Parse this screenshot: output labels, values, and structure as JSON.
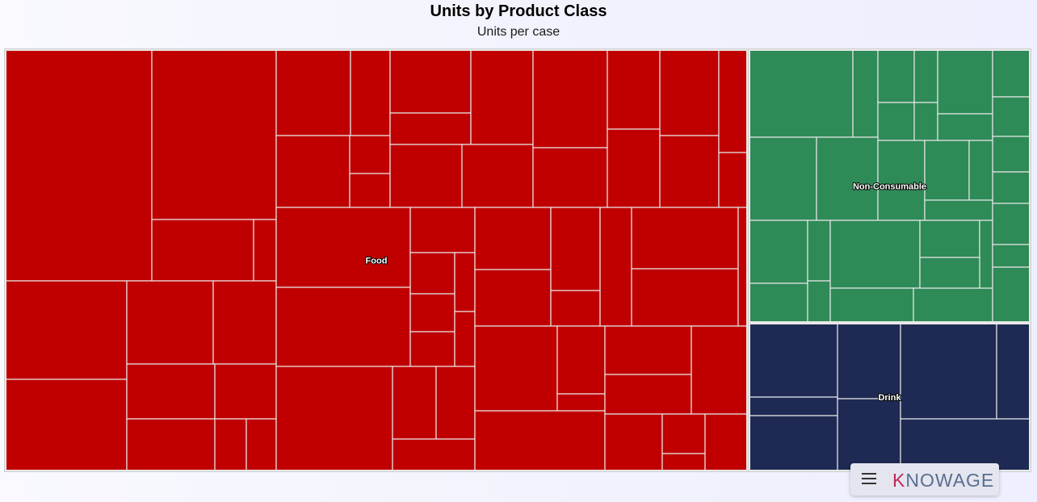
{
  "chart_data": {
    "type": "treemap",
    "title": "Units by Product Class",
    "subtitle": "Units per case",
    "groups": [
      {
        "name": "Food",
        "label": "Food",
        "color": "#c00000",
        "value": 480
      },
      {
        "name": "Non-Consumable",
        "label": "Non-Consumable",
        "color": "#2e8a57",
        "value": 120
      },
      {
        "name": "Drink",
        "label": "Drink",
        "color": "#1e2a54",
        "value": 60
      }
    ]
  },
  "colors": {
    "food": "#c00000",
    "non_consumable": "#2e8a57",
    "drink": "#1e2a54",
    "tile_border": "#e8e8e8"
  },
  "toolbar": {
    "menu_icon": "hamburger-menu-icon",
    "brand_prefix": "K",
    "brand_rest": "NOWAGE"
  }
}
